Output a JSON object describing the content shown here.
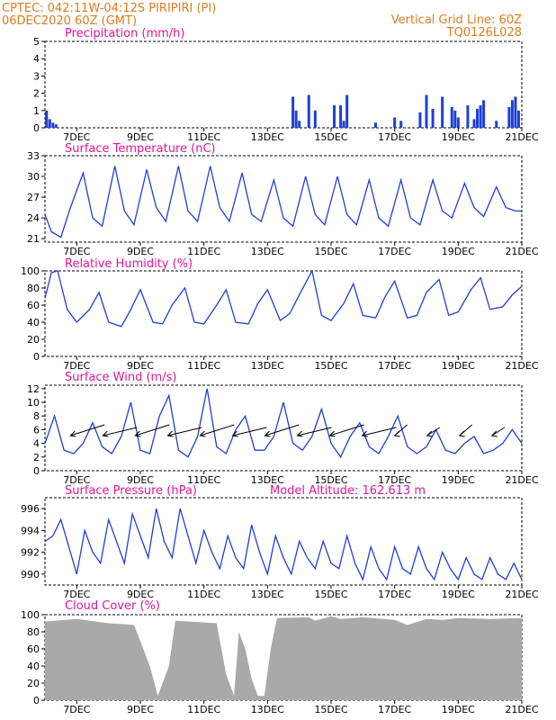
{
  "header": {
    "line1_left": "CPTEC:   042:11W-04:12S   PIRIPIRI (PI)",
    "line2_left": "06DEC2020 60Z (GMT)",
    "line1_right": "Vertical Grid Line: 60Z",
    "line2_right": "TQ0126L028"
  },
  "colors": {
    "header": "#e07a1f",
    "title": "#e0169a",
    "series": "#1f3fd6",
    "bar": "#1f3fd6",
    "cloud": "#a9a9a9",
    "arrow": "#000000"
  },
  "x_ticks": [
    "7DEC",
    "9DEC",
    "11DEC",
    "13DEC",
    "15DEC",
    "17DEC",
    "19DEC",
    "21DEC"
  ],
  "chart_data": [
    {
      "type": "bar",
      "title": "Precipitation (mm/h)",
      "x_range_days": [
        0,
        15
      ],
      "ylim": [
        0,
        5
      ],
      "yticks": [
        "0",
        "1",
        "2",
        "3",
        "4",
        "5"
      ],
      "x": [
        0.05,
        0.15,
        0.25,
        0.35,
        7.8,
        7.9,
        8.0,
        8.3,
        8.5,
        9.1,
        9.3,
        9.4,
        9.5,
        10.4,
        11.0,
        11.2,
        11.8,
        12.0,
        12.2,
        12.5,
        12.8,
        12.9,
        13.0,
        13.3,
        13.5,
        13.6,
        13.7,
        13.8,
        14.2,
        14.6,
        14.7,
        14.8,
        14.9
      ],
      "values": [
        1.0,
        0.5,
        0.3,
        0.2,
        1.8,
        1.0,
        0.4,
        1.9,
        1.0,
        1.3,
        1.3,
        0.4,
        1.9,
        0.3,
        0.6,
        0.4,
        0.9,
        1.9,
        1.1,
        1.8,
        1.2,
        1.0,
        0.6,
        1.3,
        0.5,
        1.1,
        1.3,
        1.6,
        0.4,
        1.2,
        1.6,
        1.8,
        1.0
      ]
    },
    {
      "type": "line",
      "title": "Surface Temperature (nC)",
      "x_range_days": [
        0,
        15
      ],
      "ylim": [
        20.5,
        33
      ],
      "yticks": [
        "21",
        "24",
        "27",
        "30",
        "33"
      ],
      "x": [
        0,
        0.2,
        0.5,
        0.8,
        1.2,
        1.5,
        1.8,
        2.2,
        2.5,
        2.8,
        3.2,
        3.5,
        3.8,
        4.2,
        4.5,
        4.8,
        5.2,
        5.5,
        5.8,
        6.2,
        6.5,
        6.8,
        7.2,
        7.5,
        7.8,
        8.2,
        8.5,
        8.8,
        9.2,
        9.5,
        9.8,
        10.2,
        10.5,
        10.8,
        11.2,
        11.5,
        11.8,
        12.2,
        12.5,
        12.8,
        13.2,
        13.5,
        13.8,
        14.2,
        14.5,
        14.8,
        15
      ],
      "values": [
        24.5,
        22,
        21.2,
        25.5,
        30.5,
        24,
        22.8,
        31.5,
        25,
        23,
        31,
        25.5,
        23.5,
        31.5,
        25,
        23.5,
        31.5,
        25.5,
        23.5,
        30.5,
        24.5,
        23.5,
        29.5,
        24,
        22.8,
        30,
        24.5,
        23,
        30,
        24.5,
        23,
        29.5,
        24,
        22.8,
        29.5,
        24,
        23,
        29.5,
        25,
        24,
        29,
        25.5,
        24.2,
        28.5,
        25.5,
        25,
        25
      ]
    },
    {
      "type": "line",
      "title": "Relative Humidity (%)",
      "x_range_days": [
        0,
        15
      ],
      "ylim": [
        0,
        100
      ],
      "yticks": [
        "0",
        "20",
        "40",
        "60",
        "80",
        "100"
      ],
      "x": [
        0,
        0.2,
        0.4,
        0.7,
        1.0,
        1.4,
        1.7,
        2.0,
        2.4,
        2.7,
        3.0,
        3.4,
        3.7,
        4.0,
        4.4,
        4.7,
        5.0,
        5.4,
        5.7,
        6.0,
        6.4,
        6.7,
        7.0,
        7.4,
        7.7,
        8.0,
        8.4,
        8.7,
        9.0,
        9.4,
        9.7,
        10.0,
        10.4,
        10.7,
        11.0,
        11.4,
        11.7,
        12.0,
        12.4,
        12.7,
        13.0,
        13.4,
        13.7,
        14.0,
        14.4,
        14.7,
        15
      ],
      "values": [
        68,
        98,
        100,
        55,
        40,
        55,
        75,
        40,
        35,
        55,
        78,
        40,
        38,
        60,
        80,
        40,
        38,
        60,
        78,
        40,
        38,
        62,
        78,
        42,
        50,
        72,
        100,
        48,
        42,
        62,
        85,
        48,
        45,
        70,
        88,
        45,
        48,
        75,
        90,
        48,
        52,
        78,
        92,
        55,
        58,
        72,
        82
      ]
    },
    {
      "type": "line",
      "title": "Surface Wind (m/s)",
      "x_range_days": [
        0,
        15
      ],
      "ylim": [
        0,
        12.5
      ],
      "yticks": [
        "0",
        "2",
        "4",
        "6",
        "8",
        "10",
        "12"
      ],
      "x": [
        0,
        0.3,
        0.6,
        0.9,
        1.2,
        1.5,
        1.8,
        2.1,
        2.4,
        2.7,
        3.0,
        3.3,
        3.6,
        3.9,
        4.2,
        4.5,
        4.8,
        5.1,
        5.4,
        5.7,
        6.0,
        6.3,
        6.6,
        6.9,
        7.2,
        7.5,
        7.8,
        8.1,
        8.4,
        8.7,
        9.0,
        9.3,
        9.6,
        9.9,
        10.2,
        10.5,
        10.8,
        11.1,
        11.4,
        11.7,
        12.0,
        12.3,
        12.6,
        12.9,
        13.2,
        13.5,
        13.8,
        14.1,
        14.4,
        14.7,
        15
      ],
      "values": [
        4,
        8,
        3,
        2.5,
        4,
        7,
        3.5,
        2.5,
        5,
        10,
        3,
        2.5,
        8,
        11,
        3,
        2,
        5,
        12,
        3.5,
        2.5,
        6,
        8,
        3,
        3,
        5,
        10,
        4,
        3,
        5,
        9,
        4,
        2,
        5,
        7,
        3.5,
        2.5,
        5,
        8,
        3.5,
        2.5,
        3.5,
        6,
        3,
        2.5,
        4,
        5,
        2.5,
        3,
        4,
        6,
        4
      ]
    },
    {
      "type": "line",
      "title": "Surface Pressure (hPa)",
      "annotation": "Model Altitude: 162.613 m",
      "x_range_days": [
        0,
        15
      ],
      "ylim": [
        989,
        997
      ],
      "yticks": [
        "990",
        "992",
        "994",
        "996"
      ],
      "x": [
        0,
        0.25,
        0.5,
        0.75,
        1.0,
        1.25,
        1.5,
        1.75,
        2.0,
        2.25,
        2.5,
        2.75,
        3.0,
        3.25,
        3.5,
        3.75,
        4.0,
        4.25,
        4.5,
        4.75,
        5.0,
        5.25,
        5.5,
        5.75,
        6.0,
        6.25,
        6.5,
        6.75,
        7.0,
        7.25,
        7.5,
        7.75,
        8.0,
        8.25,
        8.5,
        8.75,
        9.0,
        9.25,
        9.5,
        9.75,
        10.0,
        10.25,
        10.5,
        10.75,
        11.0,
        11.25,
        11.5,
        11.75,
        12.0,
        12.25,
        12.5,
        12.75,
        13.0,
        13.25,
        13.5,
        13.75,
        14.0,
        14.25,
        14.5,
        14.75,
        15
      ],
      "values": [
        993,
        993.5,
        995,
        992.5,
        990,
        994,
        992,
        991,
        995,
        993,
        991,
        995.5,
        993.5,
        991.5,
        996,
        993,
        991.5,
        996,
        993.5,
        991,
        994,
        992,
        990.5,
        993.5,
        991.5,
        990.5,
        994.5,
        992,
        990,
        993.5,
        991.5,
        990,
        993,
        991.5,
        990.5,
        993,
        991,
        990.5,
        993.5,
        991,
        989.5,
        992.5,
        990.5,
        989.5,
        992.5,
        990.5,
        990,
        992.5,
        990.5,
        989.5,
        992,
        990.5,
        989.5,
        991.5,
        990,
        989.5,
        991.5,
        990,
        989.5,
        991,
        989.5
      ]
    },
    {
      "type": "area",
      "title": "Cloud Cover (%)",
      "x_range_days": [
        0,
        15
      ],
      "ylim": [
        0,
        100
      ],
      "yticks": [
        "0",
        "20",
        "40",
        "60",
        "80",
        "100"
      ],
      "x": [
        0,
        1.0,
        2.0,
        2.8,
        3.3,
        3.55,
        3.9,
        4.1,
        5.4,
        5.7,
        5.95,
        6.1,
        6.3,
        6.5,
        6.7,
        6.9,
        7.1,
        7.3,
        8.3,
        8.5,
        9.0,
        9.3,
        10.0,
        11.0,
        11.4,
        12.0,
        12.5,
        13.0,
        14.0,
        15
      ],
      "values": [
        92,
        95,
        90,
        88,
        40,
        5,
        40,
        93,
        90,
        30,
        5,
        80,
        60,
        25,
        5,
        5,
        60,
        96,
        97,
        93,
        98,
        95,
        97,
        94,
        88,
        95,
        94,
        96,
        95,
        96
      ]
    }
  ]
}
